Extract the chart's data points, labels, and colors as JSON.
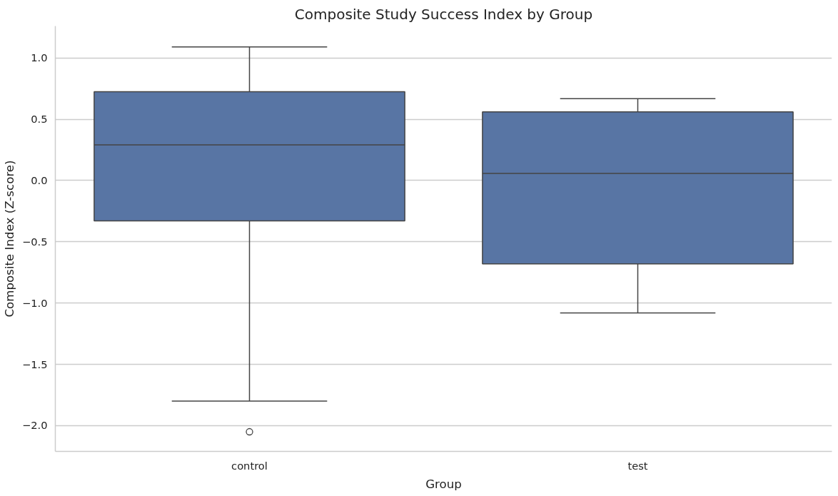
{
  "chart_data": {
    "type": "box",
    "title": "Composite Study Success Index by Group",
    "xlabel": "Group",
    "ylabel": "Composite Index (Z-score)",
    "categories": [
      "control",
      "test"
    ],
    "series": [
      {
        "color": "#5875a4",
        "boxes": [
          {
            "low": -1.8,
            "q1": -0.33,
            "median": 0.29,
            "q3": 0.725,
            "high": 1.09,
            "outliers": [
              -2.05
            ]
          },
          {
            "low": -1.08,
            "q1": -0.68,
            "median": 0.058,
            "q3": 0.56,
            "high": 0.667
          }
        ]
      }
    ],
    "ylim": [
      -2.21,
      1.26
    ],
    "yticks": [
      {
        "value": -2.0,
        "label": "−2.0"
      },
      {
        "value": -1.5,
        "label": "−1.5"
      },
      {
        "value": -1.0,
        "label": "−1.0"
      },
      {
        "value": -0.5,
        "label": "−0.5"
      },
      {
        "value": 0.0,
        "label": "0.0"
      },
      {
        "value": 0.5,
        "label": "0.5"
      },
      {
        "value": 1.0,
        "label": "1.0"
      }
    ],
    "grid": "y"
  }
}
